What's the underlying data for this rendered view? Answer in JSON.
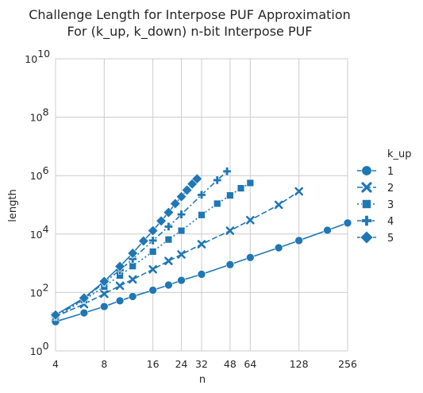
{
  "chart_data": {
    "type": "line",
    "title": [
      "Challenge Length for Interpose PUF Approximation",
      "For (k_up, k_down) n-bit Interpose PUF"
    ],
    "xlabel": "n",
    "ylabel": "length",
    "xscale": "log2",
    "yscale": "log10",
    "xlim": [
      4,
      256
    ],
    "ylim": [
      1,
      10000000000
    ],
    "xticks": [
      4,
      8,
      16,
      24,
      32,
      48,
      64,
      128,
      256
    ],
    "xtick_labels": [
      "4",
      "8",
      "16",
      "24",
      "32",
      "48",
      "64",
      "128",
      "256"
    ],
    "yticks": [
      1,
      100,
      10000,
      1000000,
      100000000,
      10000000000
    ],
    "ytick_labels": [
      [
        "10",
        "0"
      ],
      [
        "10",
        "2"
      ],
      [
        "10",
        "4"
      ],
      [
        "10",
        "6"
      ],
      [
        "10",
        "8"
      ],
      [
        "10",
        "10"
      ]
    ],
    "grid": true,
    "legend": {
      "title": "k_up",
      "placement": "right"
    },
    "color": "#1f77b4",
    "series": [
      {
        "name": "1",
        "marker": "circle",
        "dash": "",
        "x": [
          4,
          6,
          8,
          10,
          12,
          16,
          20,
          24,
          32,
          48,
          64,
          96,
          128,
          192,
          256
        ],
        "y": [
          10,
          20,
          33,
          52,
          73,
          120,
          180,
          260,
          420,
          900,
          1580,
          3400,
          6000,
          13500,
          24000
        ]
      },
      {
        "name": "2",
        "marker": "x",
        "dash": "7 3",
        "x": [
          4,
          6,
          8,
          10,
          12,
          16,
          20,
          24,
          32,
          48,
          64,
          96,
          128
        ],
        "y": [
          15,
          40,
          90,
          170,
          280,
          620,
          1200,
          2000,
          4500,
          13000,
          30000,
          100000,
          290000
        ]
      },
      {
        "name": "3",
        "marker": "square",
        "dash": "2 3",
        "x": [
          4,
          6,
          8,
          10,
          12,
          16,
          20,
          24,
          32,
          40,
          48,
          56,
          64
        ],
        "y": [
          15,
          55,
          160,
          380,
          800,
          2500,
          6500,
          13000,
          45000,
          110000,
          210000,
          370000,
          560000
        ]
      },
      {
        "name": "4",
        "marker": "plus",
        "dash": "7 3 2 3",
        "x": [
          4,
          6,
          8,
          10,
          12,
          16,
          20,
          24,
          32,
          40,
          46
        ],
        "y": [
          15,
          60,
          220,
          580,
          1400,
          6000,
          18000,
          47000,
          220000,
          700000,
          1400000
        ]
      },
      {
        "name": "5",
        "marker": "diamond",
        "dash": "",
        "x": [
          4,
          6,
          8,
          10,
          12,
          14,
          16,
          18,
          20,
          22,
          24,
          26,
          28,
          30
        ],
        "y": [
          17,
          65,
          240,
          780,
          2200,
          5800,
          13000,
          28000,
          55000,
          110000,
          190000,
          320000,
          520000,
          780000
        ]
      }
    ]
  }
}
